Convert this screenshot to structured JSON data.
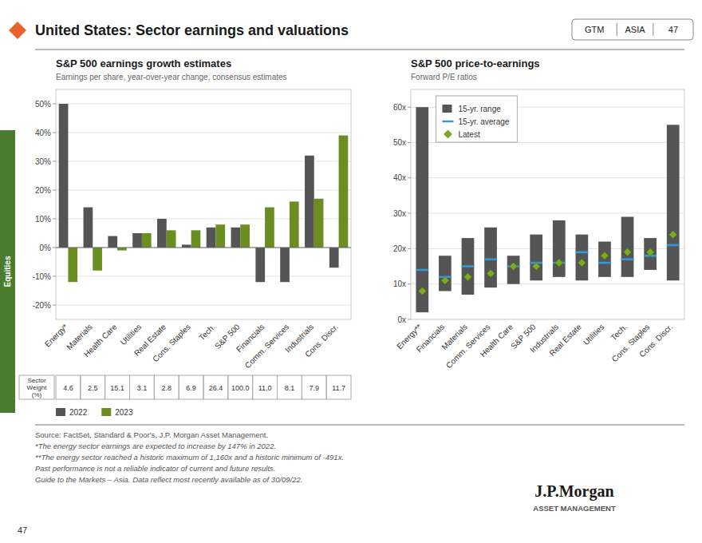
{
  "title": "United States: Sector earnings and valuations",
  "annotations": [
    "GTM",
    "ASIA",
    "47",
    "Equities",
    "J.P.Morgan",
    "ASSET MANAGEMENT",
    "47"
  ],
  "footnotes": [
    "Source: FactSet, Standard & Poor's, J.P. Morgan Asset Management.",
    "*The energy sector earnings are expected to increase by 147% in 2022.",
    "**The energy sector reached a historic maximum of 1,160x and a historic minimum of -491x.",
    "Past performance is not a reliable indicator of current and future results.",
    "Guide to the Markets – Asia. Data reflect most recently available as of 30/09/22."
  ],
  "chart_data": [
    {
      "type": "bar",
      "title": "S&P 500 earnings growth estimates",
      "subtitle": "Earnings per share, year-over-year change, consensus estimates",
      "categories": [
        "Energy*",
        "Materials",
        "Health Care",
        "Utilities",
        "Real Estate",
        "Cons. Staples",
        "Tech.",
        "S&P 500",
        "Financials",
        "Comm. Services",
        "Industrials",
        "Cons. Discr."
      ],
      "series": [
        {
          "name": "2022",
          "color": "#555555",
          "values": [
            50,
            14,
            4,
            5,
            10,
            1,
            7,
            7,
            -12,
            -12,
            32,
            -7
          ]
        },
        {
          "name": "2023",
          "color": "#6b8e23",
          "values": [
            -12,
            -8,
            -1,
            5,
            6,
            6,
            8,
            8,
            14,
            16,
            17,
            39
          ]
        }
      ],
      "ylim": [
        -25,
        55
      ],
      "yticks": [
        {
          "value": -20,
          "label": "-20%"
        },
        {
          "value": -10,
          "label": "-10%"
        },
        {
          "value": 0,
          "label": "0%"
        },
        {
          "value": 10,
          "label": "10%"
        },
        {
          "value": 20,
          "label": "20%"
        },
        {
          "value": 30,
          "label": "30%"
        },
        {
          "value": 40,
          "label": "40%"
        },
        {
          "value": 50,
          "label": "50%"
        }
      ],
      "grid": true,
      "legend": "bottom",
      "sector_weights": {
        "label": "Sector\nWeight\n(%)",
        "values": [
          4.6,
          2.5,
          15.1,
          3.1,
          2.8,
          6.9,
          26.4,
          100.0,
          11.0,
          8.1,
          7.9,
          11.7
        ],
        "value_labels": [
          "4.6",
          "2.5",
          "15.1",
          "3.1",
          "2.8",
          "6.9",
          "26.4",
          "100.0",
          "11.0",
          "8.1",
          "7.9",
          "11.7"
        ]
      }
    },
    {
      "type": "range",
      "title": "S&P 500 price-to-earnings",
      "subtitle": "Forward P/E ratios",
      "categories": [
        "Energy**",
        "Financials",
        "Materials",
        "Comm. Services",
        "Health Care",
        "S&P 500",
        "Industrials",
        "Real Estate",
        "Utilities",
        "Tech.",
        "Cons. Staples",
        "Cons. Discr."
      ],
      "series": [
        {
          "name": "15-yr. range",
          "type": "range",
          "color": "#555555",
          "low": [
            2,
            8,
            7,
            9,
            10,
            11,
            12,
            11,
            12,
            12,
            14,
            11
          ],
          "high": [
            60,
            18,
            23,
            26,
            18,
            24,
            28,
            24,
            22,
            29,
            23,
            55
          ]
        },
        {
          "name": "15-yr. average",
          "type": "scatter",
          "marker": "hline",
          "color": "#3399dd",
          "values": [
            14,
            12,
            15,
            17,
            15,
            16,
            16,
            19,
            16,
            17,
            18,
            21
          ]
        },
        {
          "name": "Latest",
          "type": "scatter",
          "marker": "diamond",
          "color": "#7aad1e",
          "values": [
            8,
            11,
            12,
            13,
            15,
            15,
            16,
            16,
            18,
            19,
            19,
            24
          ]
        }
      ],
      "ylim": [
        0,
        65
      ],
      "yticks": [
        {
          "value": 0,
          "label": "0x"
        },
        {
          "value": 10,
          "label": "10x"
        },
        {
          "value": 20,
          "label": "20x"
        },
        {
          "value": 30,
          "label": "30x"
        },
        {
          "value": 40,
          "label": "40x"
        },
        {
          "value": 50,
          "label": "50x"
        },
        {
          "value": 60,
          "label": "60x"
        }
      ],
      "grid": true,
      "legend": "upper left"
    }
  ]
}
